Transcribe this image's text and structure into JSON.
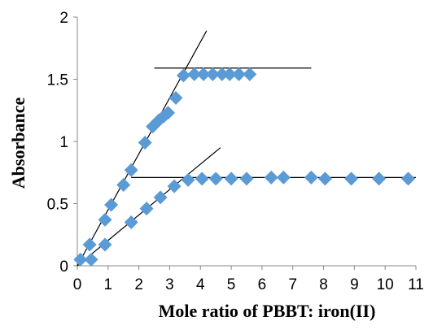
{
  "chart_data": {
    "type": "scatter",
    "title": "",
    "xlabel": "Mole ratio of PBBT: iron(II)",
    "ylabel": "Absorbance",
    "xlim": [
      0,
      11
    ],
    "ylim": [
      0,
      2
    ],
    "x_ticks": [
      0,
      1,
      2,
      3,
      4,
      5,
      6,
      7,
      8,
      9,
      10,
      11
    ],
    "y_ticks": [
      0,
      0.5,
      1,
      1.5,
      2
    ],
    "grid": false,
    "marker": "diamond",
    "marker_color": "#5b9bd5",
    "series": [
      {
        "points": [
          [
            0.1,
            0.05
          ],
          [
            0.4,
            0.17
          ],
          [
            0.9,
            0.37
          ],
          [
            1.1,
            0.49
          ],
          [
            1.5,
            0.65
          ],
          [
            1.75,
            0.77
          ],
          [
            2.2,
            0.99
          ],
          [
            2.45,
            1.12
          ],
          [
            2.65,
            1.17
          ],
          [
            2.8,
            1.2
          ],
          [
            2.95,
            1.23
          ],
          [
            3.2,
            1.35
          ],
          [
            3.45,
            1.53
          ],
          [
            3.8,
            1.54
          ],
          [
            4.1,
            1.54
          ],
          [
            4.4,
            1.54
          ],
          [
            4.7,
            1.54
          ],
          [
            4.95,
            1.54
          ],
          [
            5.25,
            1.54
          ],
          [
            5.6,
            1.54
          ]
        ]
      },
      {
        "points": [
          [
            0.45,
            0.05
          ],
          [
            0.9,
            0.17
          ],
          [
            1.75,
            0.35
          ],
          [
            2.25,
            0.46
          ],
          [
            2.7,
            0.55
          ],
          [
            3.15,
            0.64
          ],
          [
            3.6,
            0.69
          ],
          [
            4.05,
            0.7
          ],
          [
            4.5,
            0.7
          ],
          [
            5.0,
            0.7
          ],
          [
            5.5,
            0.7
          ],
          [
            6.3,
            0.71
          ],
          [
            6.7,
            0.71
          ],
          [
            7.6,
            0.71
          ],
          [
            8.05,
            0.7
          ],
          [
            8.9,
            0.7
          ],
          [
            9.8,
            0.7
          ],
          [
            10.75,
            0.7
          ]
        ]
      }
    ],
    "fit_lines": [
      {
        "from": [
          0,
          0
        ],
        "to": [
          4.2,
          1.89
        ]
      },
      {
        "from": [
          2.5,
          1.59
        ],
        "to": [
          7.6,
          1.59
        ]
      },
      {
        "from": [
          0,
          0
        ],
        "to": [
          4.65,
          0.95
        ]
      },
      {
        "from": [
          1.75,
          0.71
        ],
        "to": [
          11.0,
          0.71
        ]
      }
    ]
  }
}
